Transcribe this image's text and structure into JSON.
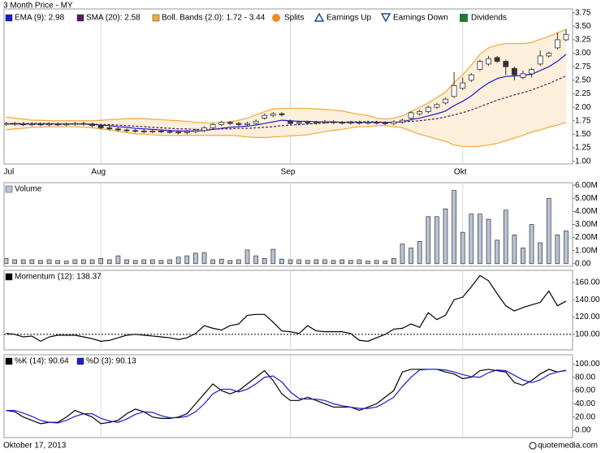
{
  "footer": {
    "date": "Oktober 17, 2013",
    "source": "quotemedia.com"
  },
  "chart_data": [
    {
      "type": "candlestick",
      "title": "3 Month Price - MY",
      "categories": [
        "Jul",
        null,
        null,
        null,
        null,
        null,
        null,
        null,
        null,
        null,
        null,
        "Aug",
        null,
        null,
        null,
        null,
        null,
        null,
        null,
        null,
        null,
        null,
        null,
        null,
        null,
        null,
        null,
        null,
        null,
        null,
        null,
        null,
        null,
        "Sep",
        null,
        null,
        null,
        null,
        null,
        null,
        null,
        null,
        null,
        null,
        null,
        null,
        null,
        null,
        null,
        null,
        null,
        null,
        null,
        "Okt",
        null,
        null,
        null,
        null,
        null,
        null,
        null,
        null,
        null,
        null,
        null,
        null
      ],
      "open": [
        1.69,
        1.7,
        1.69,
        1.68,
        1.69,
        1.68,
        1.69,
        1.68,
        1.69,
        1.7,
        1.69,
        1.66,
        1.62,
        1.6,
        1.58,
        1.57,
        1.56,
        1.55,
        1.56,
        1.55,
        1.54,
        1.53,
        1.55,
        1.57,
        1.62,
        1.68,
        1.72,
        1.7,
        1.68,
        1.7,
        1.8,
        1.85,
        1.88,
        1.74,
        1.7,
        1.72,
        1.71,
        1.72,
        1.73,
        1.72,
        1.71,
        1.72,
        1.71,
        1.72,
        1.71,
        1.7,
        1.73,
        1.8,
        1.88,
        1.92,
        2.0,
        2.08,
        2.2,
        2.35,
        2.5,
        2.7,
        2.8,
        2.92,
        2.85,
        2.72,
        2.55,
        2.62,
        2.8,
        2.95,
        3.1,
        3.25
      ],
      "high": [
        1.73,
        1.73,
        1.72,
        1.72,
        1.72,
        1.72,
        1.72,
        1.72,
        1.73,
        1.73,
        1.72,
        1.69,
        1.65,
        1.63,
        1.61,
        1.6,
        1.59,
        1.59,
        1.59,
        1.58,
        1.57,
        1.58,
        1.6,
        1.65,
        1.71,
        1.75,
        1.75,
        1.73,
        1.73,
        1.77,
        1.88,
        1.91,
        1.91,
        1.77,
        1.75,
        1.75,
        1.75,
        1.76,
        1.76,
        1.75,
        1.75,
        1.75,
        1.75,
        1.75,
        1.74,
        1.76,
        1.79,
        1.93,
        1.95,
        2.03,
        2.08,
        2.18,
        2.65,
        2.55,
        2.63,
        2.88,
        2.95,
        2.95,
        2.88,
        2.75,
        2.68,
        2.73,
        3.05,
        3.03,
        3.38,
        3.45
      ],
      "low": [
        1.66,
        1.66,
        1.65,
        1.65,
        1.65,
        1.65,
        1.65,
        1.65,
        1.66,
        1.66,
        1.63,
        1.59,
        1.57,
        1.55,
        1.54,
        1.53,
        1.52,
        1.52,
        1.52,
        1.51,
        1.5,
        1.5,
        1.52,
        1.54,
        1.59,
        1.65,
        1.67,
        1.65,
        1.65,
        1.67,
        1.77,
        1.82,
        1.83,
        1.67,
        1.67,
        1.68,
        1.68,
        1.69,
        1.69,
        1.68,
        1.68,
        1.68,
        1.68,
        1.68,
        1.67,
        1.67,
        1.7,
        1.77,
        1.85,
        1.89,
        1.97,
        2.05,
        2.17,
        2.32,
        2.47,
        2.67,
        2.77,
        2.82,
        2.6,
        2.5,
        2.52,
        2.55,
        2.77,
        2.92,
        3.07,
        3.22
      ],
      "close": [
        1.7,
        1.69,
        1.68,
        1.69,
        1.68,
        1.69,
        1.68,
        1.69,
        1.7,
        1.69,
        1.66,
        1.62,
        1.6,
        1.58,
        1.57,
        1.56,
        1.55,
        1.56,
        1.55,
        1.54,
        1.53,
        1.55,
        1.57,
        1.62,
        1.68,
        1.72,
        1.7,
        1.68,
        1.7,
        1.74,
        1.85,
        1.88,
        1.86,
        1.7,
        1.72,
        1.71,
        1.72,
        1.73,
        1.72,
        1.71,
        1.72,
        1.71,
        1.72,
        1.71,
        1.7,
        1.73,
        1.76,
        1.9,
        1.92,
        2.0,
        2.05,
        2.15,
        2.4,
        2.45,
        2.6,
        2.85,
        2.9,
        2.85,
        2.75,
        2.6,
        2.62,
        2.7,
        2.95,
        3.0,
        3.25,
        3.35
      ],
      "up_color": "#ffffff",
      "down_color": "#333333",
      "overlays": [
        {
          "name": "EMA (9): 2.98",
          "color": "#1a1ad0",
          "values": [
            1.69,
            1.69,
            1.69,
            1.69,
            1.69,
            1.69,
            1.69,
            1.69,
            1.69,
            1.69,
            1.68,
            1.67,
            1.66,
            1.64,
            1.63,
            1.61,
            1.6,
            1.59,
            1.58,
            1.57,
            1.56,
            1.56,
            1.56,
            1.57,
            1.59,
            1.61,
            1.63,
            1.64,
            1.65,
            1.67,
            1.7,
            1.73,
            1.76,
            1.75,
            1.74,
            1.74,
            1.73,
            1.73,
            1.73,
            1.72,
            1.72,
            1.72,
            1.72,
            1.72,
            1.72,
            1.72,
            1.73,
            1.77,
            1.8,
            1.84,
            1.88,
            1.93,
            2.03,
            2.11,
            2.21,
            2.34,
            2.45,
            2.53,
            2.57,
            2.58,
            2.59,
            2.61,
            2.68,
            2.75,
            2.85,
            2.98
          ]
        },
        {
          "name": "SMA (20): 2.58",
          "color": "#5a1a5a",
          "dash": true,
          "values": [
            1.7,
            1.7,
            1.7,
            1.7,
            1.7,
            1.7,
            1.69,
            1.69,
            1.69,
            1.69,
            1.69,
            1.68,
            1.68,
            1.67,
            1.66,
            1.65,
            1.64,
            1.63,
            1.62,
            1.61,
            1.6,
            1.6,
            1.59,
            1.59,
            1.59,
            1.6,
            1.6,
            1.61,
            1.61,
            1.62,
            1.63,
            1.64,
            1.66,
            1.67,
            1.68,
            1.69,
            1.7,
            1.71,
            1.72,
            1.72,
            1.73,
            1.73,
            1.73,
            1.73,
            1.72,
            1.72,
            1.73,
            1.74,
            1.75,
            1.77,
            1.79,
            1.82,
            1.86,
            1.9,
            1.95,
            2.01,
            2.07,
            2.13,
            2.18,
            2.23,
            2.27,
            2.32,
            2.38,
            2.44,
            2.51,
            2.58
          ]
        }
      ],
      "band": {
        "name": "Boll. Bands (2.0): 1.72 - 3.44",
        "color": "#f2a93b",
        "fill": "#fcefdc",
        "upper": [
          1.82,
          1.8,
          1.78,
          1.76,
          1.76,
          1.75,
          1.75,
          1.75,
          1.75,
          1.75,
          1.75,
          1.76,
          1.77,
          1.78,
          1.79,
          1.79,
          1.79,
          1.78,
          1.77,
          1.76,
          1.75,
          1.74,
          1.72,
          1.71,
          1.71,
          1.72,
          1.73,
          1.76,
          1.8,
          1.86,
          1.92,
          1.97,
          1.98,
          1.98,
          1.98,
          1.98,
          1.97,
          1.96,
          1.95,
          1.93,
          1.9,
          1.87,
          1.85,
          1.8,
          1.78,
          1.8,
          1.84,
          1.92,
          2.0,
          2.08,
          2.18,
          2.28,
          2.46,
          2.6,
          2.78,
          2.98,
          3.1,
          3.15,
          3.18,
          3.18,
          3.18,
          3.2,
          3.26,
          3.31,
          3.38,
          3.44
        ],
        "lower": [
          1.58,
          1.6,
          1.61,
          1.63,
          1.63,
          1.64,
          1.64,
          1.64,
          1.64,
          1.63,
          1.62,
          1.6,
          1.58,
          1.55,
          1.53,
          1.51,
          1.5,
          1.49,
          1.48,
          1.48,
          1.48,
          1.48,
          1.48,
          1.48,
          1.48,
          1.48,
          1.48,
          1.47,
          1.45,
          1.44,
          1.44,
          1.45,
          1.46,
          1.47,
          1.48,
          1.49,
          1.52,
          1.55,
          1.57,
          1.59,
          1.62,
          1.64,
          1.64,
          1.66,
          1.66,
          1.64,
          1.62,
          1.56,
          1.5,
          1.46,
          1.41,
          1.37,
          1.3,
          1.28,
          1.27,
          1.28,
          1.3,
          1.33,
          1.38,
          1.43,
          1.48,
          1.54,
          1.58,
          1.63,
          1.67,
          1.72
        ]
      },
      "events": [
        "Splits",
        "Earnings Up",
        "Earnings Down",
        "Dividends"
      ],
      "ylim": [
        0.95,
        3.82
      ],
      "yticks": [
        {
          "value": 1,
          "label": "1.00"
        },
        {
          "value": 1.25,
          "label": "1.25"
        },
        {
          "value": 1.5,
          "label": "1.50"
        },
        {
          "value": 1.75,
          "label": "1.75"
        },
        {
          "value": 2,
          "label": "2.00"
        },
        {
          "value": 2.25,
          "label": "2.25"
        },
        {
          "value": 2.5,
          "label": "2.50"
        },
        {
          "value": 2.75,
          "label": "2.75"
        },
        {
          "value": 3,
          "label": "3.00"
        },
        {
          "value": 3.25,
          "label": "3.25"
        },
        {
          "value": 3.5,
          "label": "3.50"
        },
        {
          "value": 3.75,
          "label": "3.75"
        }
      ],
      "xgrid": true
    },
    {
      "type": "bar",
      "series": [
        {
          "name": "Volume",
          "color": "#b9c3d6",
          "values": [
            0.4,
            0.3,
            0.3,
            0.3,
            0.25,
            0.3,
            0.25,
            0.2,
            0.3,
            0.3,
            0.3,
            0.4,
            0.3,
            0.6,
            0.3,
            0.25,
            0.3,
            0.3,
            0.25,
            0.3,
            0.5,
            0.6,
            0.8,
            0.85,
            0.3,
            0.35,
            0.25,
            0.3,
            1.05,
            0.6,
            0.4,
            1.1,
            0.35,
            0.3,
            0.3,
            0.25,
            0.3,
            0.3,
            0.25,
            0.3,
            0.25,
            0.3,
            0.2,
            0.25,
            0.2,
            0.4,
            1.5,
            1.2,
            1.7,
            3.6,
            3.6,
            4.2,
            5.6,
            2.4,
            3.8,
            3.8,
            3.4,
            1.8,
            4.1,
            2.2,
            1.2,
            3.0,
            1.6,
            5.0,
            2.2,
            2.5
          ]
        }
      ],
      "ylim": [
        -0.2,
        6.2
      ],
      "yticks": [
        {
          "value": 0,
          "label": "0.00"
        },
        {
          "value": 1,
          "label": "1.00M"
        },
        {
          "value": 2,
          "label": "2.00M"
        },
        {
          "value": 3,
          "label": "3.00M"
        },
        {
          "value": 4,
          "label": "4.00M"
        },
        {
          "value": 5,
          "label": "5.00M"
        },
        {
          "value": 6,
          "label": "6.00M"
        }
      ],
      "xgrid": true
    },
    {
      "type": "line",
      "series": [
        {
          "name": "Momentum (12): 138.37",
          "color": "#000000",
          "values": [
            101,
            100,
            97,
            98,
            92,
            97,
            99,
            99,
            99,
            97,
            95,
            92,
            93,
            96,
            99,
            100,
            99,
            98,
            97,
            96,
            94,
            96,
            101,
            110,
            107,
            105,
            110,
            112,
            122,
            123,
            123,
            114,
            104,
            103,
            101,
            110,
            104,
            103,
            103,
            103,
            101,
            93,
            92,
            96,
            100,
            106,
            107,
            112,
            108,
            125,
            117,
            122,
            140,
            143,
            155,
            168,
            162,
            147,
            133,
            127,
            131,
            134,
            137,
            150,
            133,
            138.37
          ]
        }
      ],
      "reference_line": 100,
      "ylim": [
        82,
        174
      ],
      "yticks": [
        {
          "value": 100,
          "label": "100.00"
        },
        {
          "value": 120,
          "label": "120.00"
        },
        {
          "value": 140,
          "label": "140.00"
        },
        {
          "value": 160,
          "label": "160.00"
        }
      ],
      "xgrid": true
    },
    {
      "type": "line",
      "series": [
        {
          "name": "%K (14): 90.64",
          "color": "#000000",
          "values": [
            30,
            28,
            20,
            15,
            10,
            12,
            12,
            20,
            30,
            25,
            20,
            10,
            12,
            15,
            25,
            32,
            28,
            20,
            18,
            18,
            20,
            25,
            40,
            55,
            70,
            60,
            55,
            60,
            70,
            80,
            90,
            75,
            55,
            45,
            45,
            50,
            45,
            40,
            35,
            35,
            35,
            30,
            35,
            40,
            50,
            60,
            88,
            92,
            92,
            92,
            92,
            88,
            85,
            78,
            80,
            90,
            92,
            90,
            88,
            72,
            68,
            75,
            85,
            92,
            88,
            90.64
          ]
        },
        {
          "name": "%D (3): 90.13",
          "color": "#1a1ad0",
          "values": [
            30,
            30,
            26,
            21,
            15,
            12,
            11,
            15,
            21,
            25,
            25,
            18,
            14,
            12,
            17,
            24,
            28,
            27,
            22,
            19,
            19,
            21,
            28,
            40,
            55,
            62,
            62,
            58,
            62,
            70,
            80,
            82,
            73,
            58,
            48,
            47,
            47,
            45,
            40,
            37,
            35,
            33,
            33,
            35,
            42,
            50,
            66,
            80,
            91,
            92,
            92,
            91,
            88,
            84,
            81,
            80,
            87,
            91,
            90,
            83,
            76,
            72,
            76,
            84,
            88,
            90.13
          ]
        }
      ],
      "ylim": [
        -11,
        114
      ],
      "yticks": [
        {
          "value": 0,
          "label": "0.00"
        },
        {
          "value": 20,
          "label": "20.00"
        },
        {
          "value": 40,
          "label": "40.00"
        },
        {
          "value": 60,
          "label": "60.00"
        },
        {
          "value": 80,
          "label": "80.00"
        },
        {
          "value": 100,
          "label": "100.00"
        }
      ],
      "xgrid": true
    }
  ]
}
